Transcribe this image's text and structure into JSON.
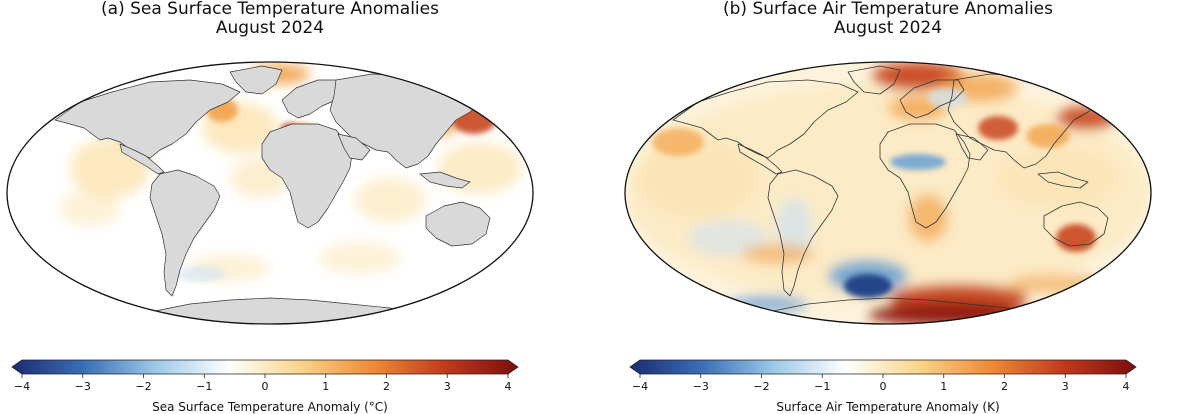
{
  "colors": {
    "land": "#d9d9d9",
    "coast": "#333333",
    "warm_light": "#fbe3b0",
    "warm_mid": "#f2a24a",
    "warm_strong": "#c8461c",
    "warm_extreme": "#8e1610",
    "cold_light": "#cfe3f2",
    "cold_mid": "#6fa4d4",
    "cold_strong": "#1f3f86"
  },
  "colorbar_stops": [
    "#1b2b72",
    "#3b6fb6",
    "#9ec9e8",
    "#ffffff",
    "#f9d48a",
    "#ee8a36",
    "#bf3a1c",
    "#7d0d0e"
  ],
  "panels": [
    {
      "title_line1": "(a) Sea Surface Temperature Anomalies",
      "title_line2": "August 2024",
      "colorbar_label": "Sea Surface Temperature Anomaly (°C)",
      "ticks": [
        "−4",
        "−3",
        "−2",
        "−1",
        "0",
        "1",
        "2",
        "3",
        "4"
      ],
      "variable": "sea-surface",
      "land_masked": true
    },
    {
      "title_line1": "(b) Surface Air Temperature Anomalies",
      "title_line2": "August 2024",
      "colorbar_label": "Surface Air Temperature Anomaly (K)",
      "ticks": [
        "−4",
        "−3",
        "−2",
        "−1",
        "0",
        "1",
        "2",
        "3",
        "4"
      ],
      "variable": "surface-air",
      "land_masked": false
    }
  ]
}
